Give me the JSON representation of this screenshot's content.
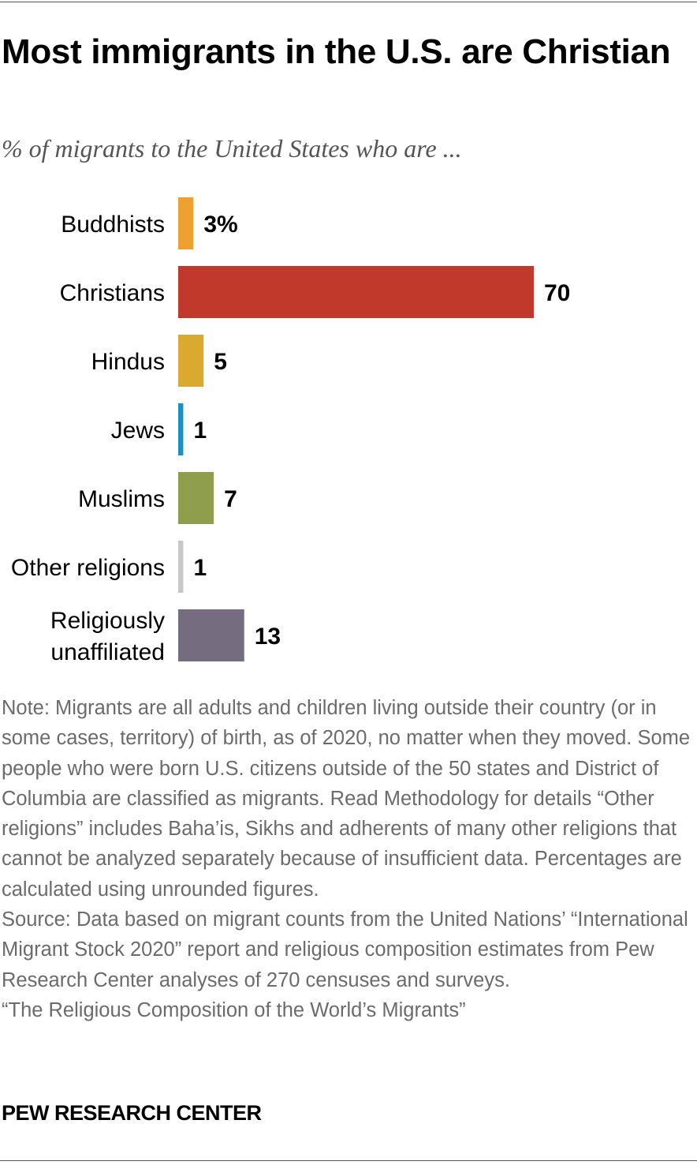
{
  "title": "Most immigrants in the U.S. are Christian",
  "subtitle": "% of migrants to the United States who are ...",
  "chart_data": {
    "type": "bar",
    "orientation": "horizontal",
    "categories": [
      "Buddhists",
      "Christians",
      "Hindus",
      "Jews",
      "Muslims",
      "Other religions",
      "Religiously unaffiliated"
    ],
    "values": [
      3,
      70,
      5,
      1,
      7,
      1,
      13
    ],
    "value_labels": [
      "3%",
      "70",
      "5",
      "1",
      "7",
      "1",
      "13"
    ],
    "colors": [
      "#eda131",
      "#c0392b",
      "#d9a930",
      "#1d8fbf",
      "#8f9e4a",
      "#c8c8c8",
      "#756c80"
    ],
    "unit": "%",
    "xlim": [
      0,
      70
    ],
    "grid": false,
    "legend": "none"
  },
  "note": {
    "text": "Note: Migrants are all adults and children living outside their country (or in some cases, territory) of birth, as of 2020, no matter when they moved. Some people who were born U.S. citizens outside of the 50 states and District of Columbia are classified as migrants. Read Methodology for details “Other religions” includes Baha’is, Sikhs and adherents of many other religions that cannot be analyzed separately because of insufficient data. Percentages are calculated using unrounded figures.",
    "source": "Source: Data based on migrant counts from the United Nations’ “International Migrant Stock 2020” report and religious composition estimates from Pew Research Center analyses of 270 censuses and surveys.",
    "report": "“The Religious Composition of the World’s Migrants”"
  },
  "brand": "PEW RESEARCH CENTER"
}
